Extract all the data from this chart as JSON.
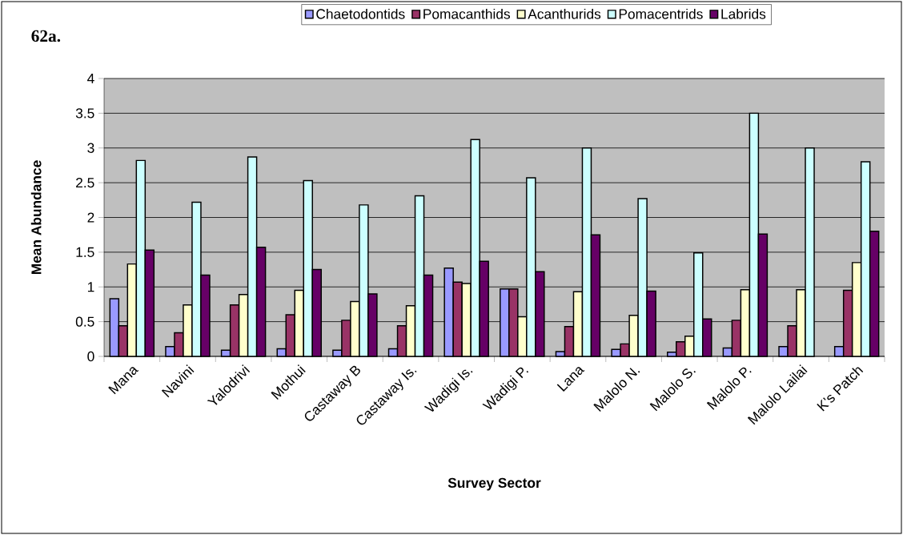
{
  "chart_data": {
    "type": "bar",
    "title": "62a.",
    "xlabel": "Survey Sector",
    "ylabel": "Mean Abundance",
    "categories": [
      "Mana",
      "Navini",
      "Yalodrivi",
      "Mothui",
      "Castaway B",
      "Castaway Is.",
      "Wadigi Is.",
      "Wadigi P.",
      "Lana",
      "Malolo N.",
      "Malolo S.",
      "Malolo P.",
      "Malolo Lailai",
      "K's Patch"
    ],
    "series": [
      {
        "name": "Chaetodontids",
        "color": "#9999ff",
        "values": [
          0.83,
          0.14,
          0.09,
          0.11,
          0.09,
          0.11,
          1.27,
          0.97,
          0.07,
          0.1,
          0.06,
          0.12,
          0.14,
          0.14
        ]
      },
      {
        "name": "Pomacanthids",
        "color": "#993366",
        "values": [
          0.44,
          0.34,
          0.74,
          0.6,
          0.52,
          0.44,
          1.07,
          0.97,
          0.43,
          0.18,
          0.21,
          0.52,
          0.44,
          0.95
        ]
      },
      {
        "name": "Acanthurids",
        "color": "#ffffcc",
        "values": [
          1.33,
          0.74,
          0.89,
          0.95,
          0.79,
          0.73,
          1.05,
          0.57,
          0.93,
          0.59,
          0.29,
          0.96,
          0.96,
          1.35
        ]
      },
      {
        "name": "Pomacentrids",
        "color": "#ccffff",
        "values": [
          2.82,
          2.22,
          2.87,
          2.53,
          2.18,
          2.31,
          3.12,
          2.57,
          3.0,
          2.27,
          1.49,
          3.5,
          3.0,
          2.8
        ]
      },
      {
        "name": "Labrids",
        "color": "#660066",
        "values": [
          1.53,
          1.17,
          1.57,
          1.25,
          0.9,
          1.17,
          1.37,
          1.22,
          1.75,
          0.94,
          0.54,
          1.76,
          null,
          1.8
        ]
      }
    ],
    "ylim": [
      0,
      4
    ],
    "yticks": [
      0,
      0.5,
      1,
      1.5,
      2,
      2.5,
      3,
      3.5,
      4
    ],
    "grid": "y",
    "legend": "top"
  }
}
